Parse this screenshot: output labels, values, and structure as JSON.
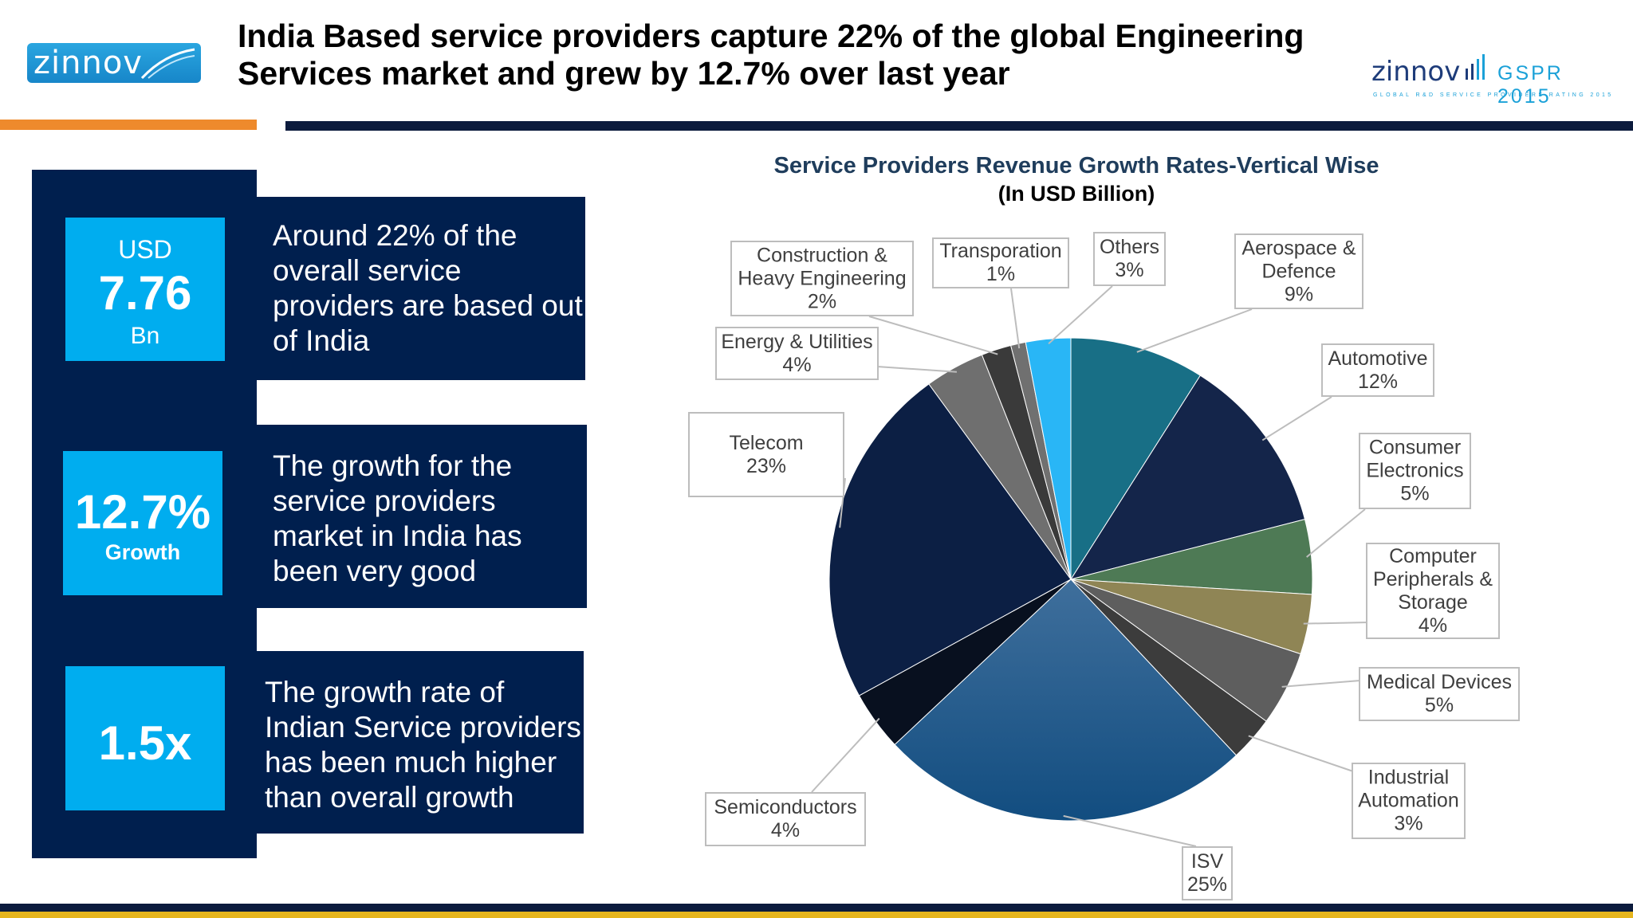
{
  "logo_left": {
    "text": "zinnov"
  },
  "title": "India Based service providers capture 22% of the global Engineering Services market and grew by 12.7% over last year",
  "logo_right": {
    "brand": "zinnov",
    "badge": "GSPR 2015",
    "tagline": "GLOBAL R&D SERVICE PROVIDERS RATING 2015"
  },
  "stats": {
    "s1": {
      "top": "USD",
      "value": "7.76",
      "unit": "Bn"
    },
    "s2": {
      "value": "12.7%",
      "label": "Growth"
    },
    "s3": {
      "value": "1.5x"
    }
  },
  "messages": {
    "m1": "Around 22% of the overall service providers are based out of India",
    "m2": "The growth for the service providers market in India has been very good",
    "m3": "The growth rate of Indian Service providers has been much higher than overall growth"
  },
  "chart_data": {
    "type": "pie",
    "title": "Service Providers Revenue Growth Rates-Vertical Wise",
    "subtitle": "(In USD Billion)",
    "slices": [
      {
        "name": "Aerospace & Defence",
        "value": 9,
        "label": "9%",
        "color": "#186f86"
      },
      {
        "name": "Automotive",
        "value": 12,
        "label": "12%",
        "color": "#14254a"
      },
      {
        "name": "Consumer Electronics",
        "value": 5,
        "label": "5%",
        "color": "#4e7a55"
      },
      {
        "name": "Computer Peripherals & Storage",
        "value": 4,
        "label": "4%",
        "color": "#8f8555"
      },
      {
        "name": "Medical Devices",
        "value": 5,
        "label": "5%",
        "color": "#5e5e5e"
      },
      {
        "name": "Industrial Automation",
        "value": 3,
        "label": "3%",
        "color": "#3c3c3c"
      },
      {
        "name": "ISV",
        "value": 25,
        "label": "25%",
        "color": "#1c5586"
      },
      {
        "name": "Semiconductors",
        "value": 4,
        "label": "4%",
        "color": "#08101f"
      },
      {
        "name": "Telecom",
        "value": 23,
        "label": "23%",
        "color": "#0c1f44"
      },
      {
        "name": "Energy & Utilities",
        "value": 4,
        "label": "4%",
        "color": "#6f6f6f"
      },
      {
        "name": "Construction & Heavy Engineering",
        "value": 2,
        "label": "2%",
        "color": "#3a3a3a"
      },
      {
        "name": "Transporation",
        "value": 1,
        "label": "1%",
        "color": "#707070"
      },
      {
        "name": "Others",
        "value": 3,
        "label": "3%",
        "color": "#29b6f6"
      }
    ]
  }
}
